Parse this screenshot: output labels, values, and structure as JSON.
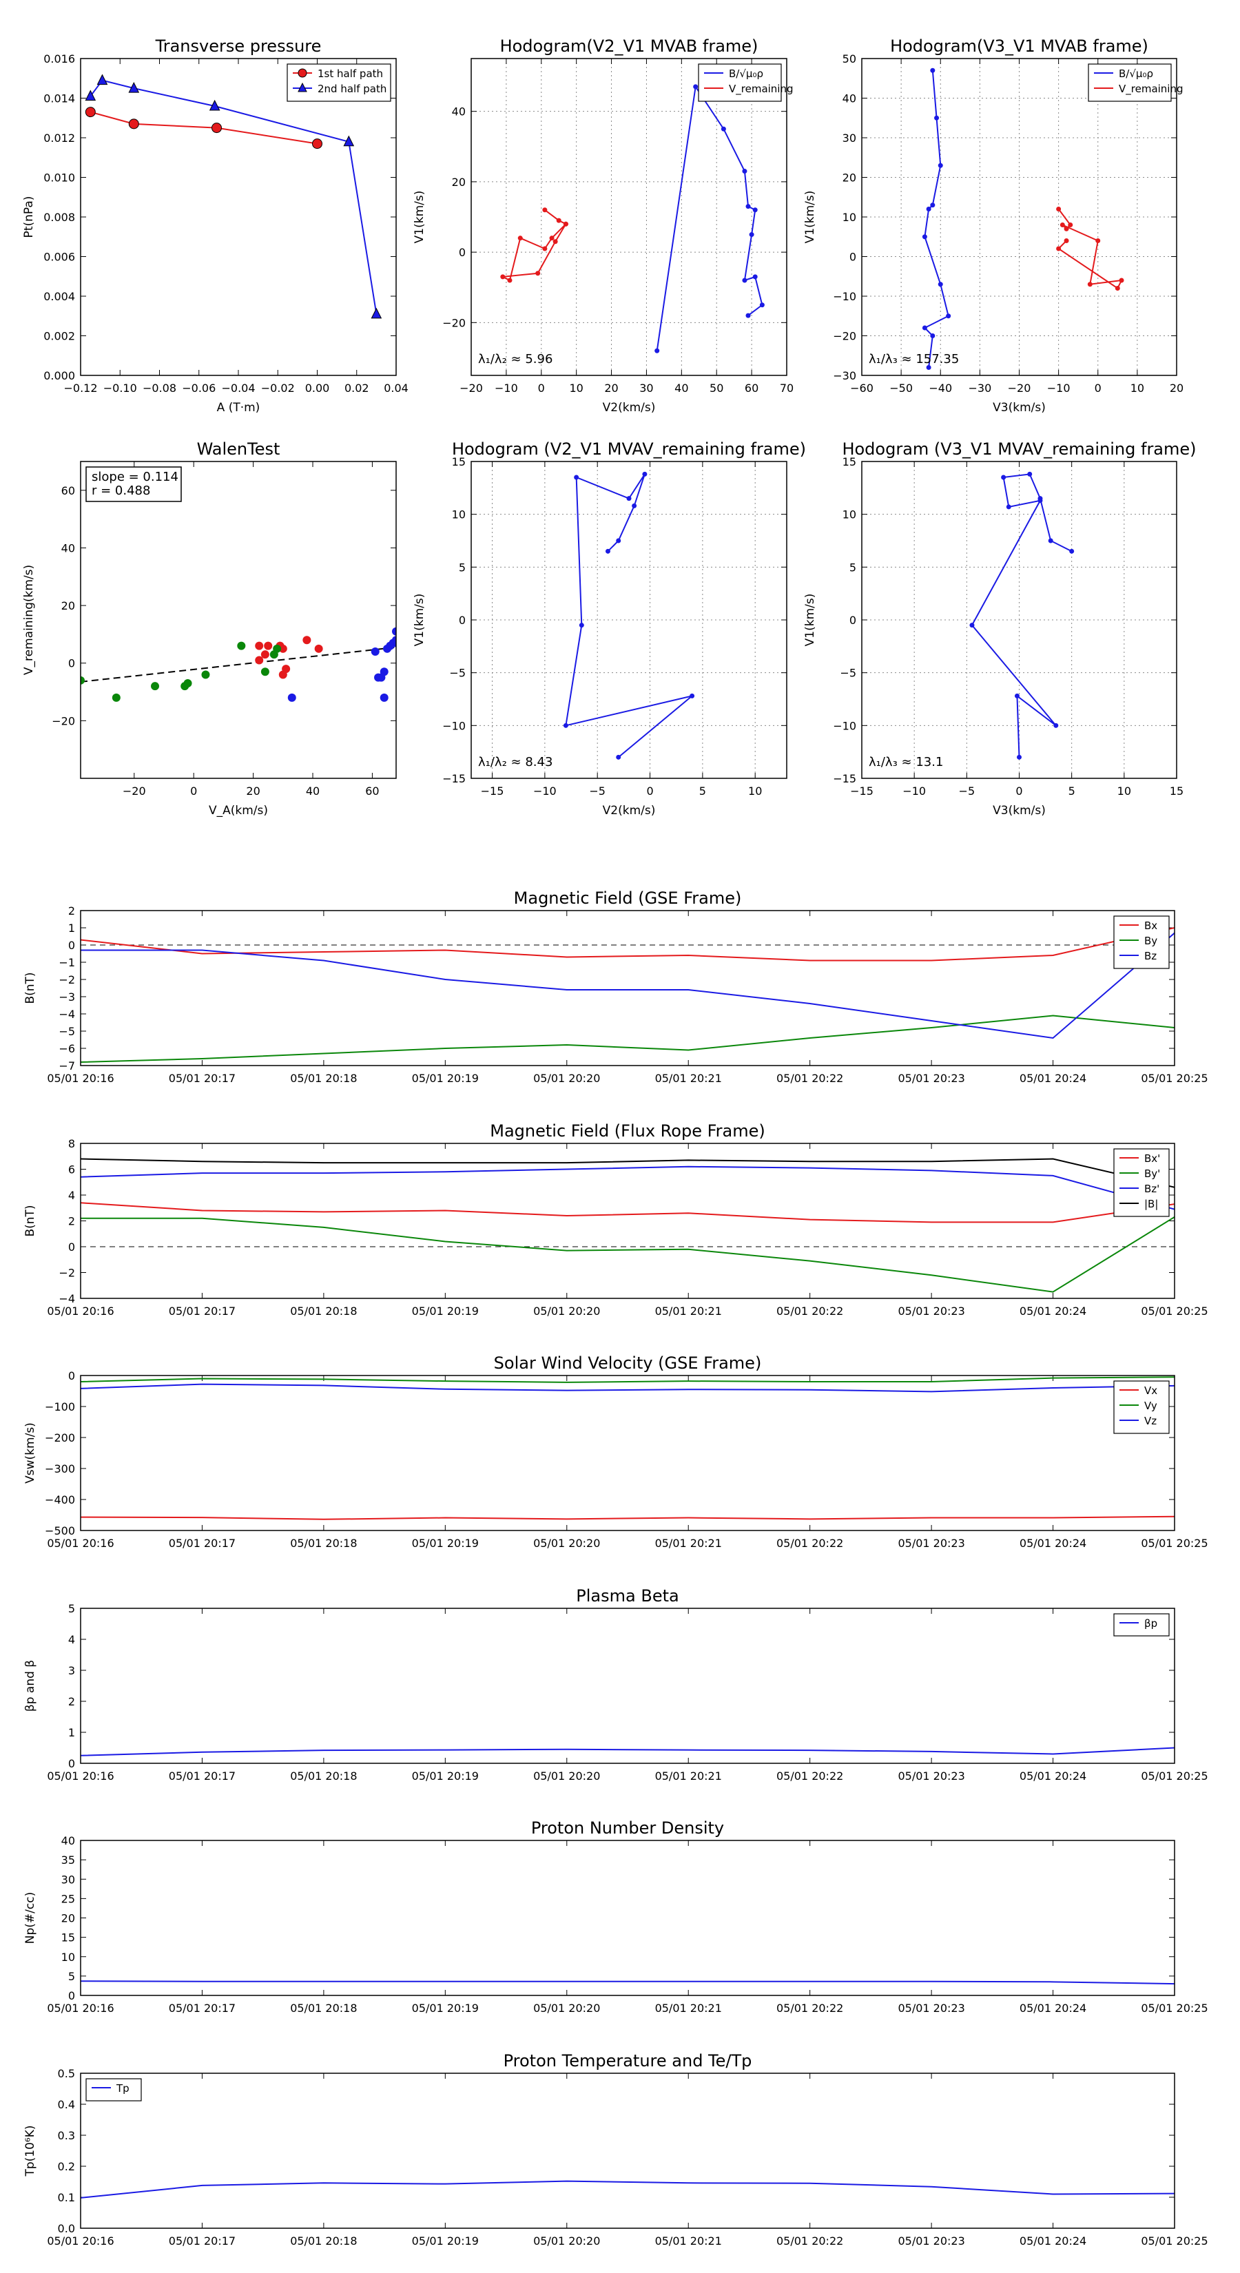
{
  "chart_data": [
    {
      "id": "pt",
      "type": "scatter",
      "title": "Transverse pressure",
      "xlabel": "A (T·m)",
      "ylabel": "Pt(nPa)",
      "xlim": [
        -0.12,
        0.04
      ],
      "ylim": [
        0.0,
        0.016
      ],
      "xticks": [
        "−0.12",
        "−0.10",
        "−0.08",
        "−0.06",
        "−0.04",
        "−0.02",
        "0.00",
        "0.02",
        "0.04"
      ],
      "yticks": [
        "0.000",
        "0.002",
        "0.004",
        "0.006",
        "0.008",
        "0.010",
        "0.012",
        "0.014",
        "0.016"
      ],
      "grid": false,
      "legend_position": "top-right",
      "series": [
        {
          "name": "1st half path",
          "color": "#e41a1c",
          "marker": "circle",
          "x": [
            -0.115,
            -0.093,
            -0.051,
            0.0
          ],
          "y": [
            0.0133,
            0.0127,
            0.0125,
            0.0117
          ]
        },
        {
          "name": "2nd half path",
          "color": "#1a1ae4",
          "marker": "triangle",
          "x": [
            -0.115,
            -0.109,
            -0.093,
            -0.052,
            0.016,
            0.03
          ],
          "y": [
            0.0141,
            0.0149,
            0.0145,
            0.0136,
            0.0118,
            0.0031
          ]
        }
      ]
    },
    {
      "id": "hodo-v2v1-mvab",
      "type": "line",
      "title": "Hodogram(V2_V1 MVAB frame)",
      "xlabel": "V2(km/s)",
      "ylabel": "V1(km/s)",
      "xlim": [
        -20,
        70
      ],
      "ylim": [
        -35,
        55
      ],
      "xticks": [
        "−20",
        "−10",
        "0",
        "10",
        "20",
        "30",
        "40",
        "50",
        "60",
        "70"
      ],
      "yticks": [
        "−20",
        "0",
        "20",
        "40"
      ],
      "grid": true,
      "legend_position": "top-right",
      "annotation": "λ₁/λ₂ ≈ 5.96",
      "series": [
        {
          "name": "B/√μ₀ρ",
          "color": "#1a1ae4",
          "x": [
            33,
            44,
            52,
            58,
            59,
            61,
            60,
            58,
            61,
            63,
            59
          ],
          "y": [
            -28,
            47,
            35,
            23,
            13,
            12,
            5,
            -8,
            -7,
            -15,
            -18
          ]
        },
        {
          "name": "V_remaining",
          "color": "#e41a1c",
          "x": [
            1,
            5,
            7,
            4,
            -1,
            -11,
            -9,
            -6,
            1,
            3,
            7
          ],
          "y": [
            12,
            9,
            8,
            3,
            -6,
            -7,
            -8,
            4,
            1,
            4,
            8
          ]
        }
      ]
    },
    {
      "id": "hodo-v3v1-mvab",
      "type": "line",
      "title": "Hodogram(V3_V1 MVAB frame)",
      "xlabel": "V3(km/s)",
      "ylabel": "V1(km/s)",
      "xlim": [
        -60,
        20
      ],
      "ylim": [
        -30,
        50
      ],
      "xticks": [
        "−60",
        "−50",
        "−40",
        "−30",
        "−20",
        "−10",
        "0",
        "10",
        "20"
      ],
      "yticks": [
        "−30",
        "−20",
        "−10",
        "0",
        "10",
        "20",
        "30",
        "40",
        "50"
      ],
      "grid": true,
      "legend_position": "top-right",
      "annotation": "λ₁/λ₃ ≈ 157.35",
      "series": [
        {
          "name": "B/√μ₀ρ",
          "color": "#1a1ae4",
          "x": [
            -42,
            -41,
            -40,
            -42,
            -43,
            -44,
            -40,
            -38,
            -44,
            -42,
            -43
          ],
          "y": [
            47,
            35,
            23,
            13,
            12,
            5,
            -7,
            -15,
            -18,
            -20,
            -28
          ]
        },
        {
          "name": "V_remaining",
          "color": "#e41a1c",
          "x": [
            -10,
            -7,
            -8,
            -9,
            0,
            -2,
            6,
            5,
            -10,
            -8
          ],
          "y": [
            12,
            8,
            7,
            8,
            4,
            -7,
            -6,
            -8,
            2,
            4
          ]
        }
      ]
    },
    {
      "id": "walen",
      "type": "scatter",
      "title": "WalenTest",
      "xlabel": "V_A(km/s)",
      "ylabel": "V_remaining(km/s)",
      "xlim": [
        -38,
        68
      ],
      "ylim": [
        -40,
        70
      ],
      "xticks": [
        "−20",
        "0",
        "20",
        "40",
        "60"
      ],
      "yticks": [
        "−20",
        "0",
        "20",
        "40",
        "60"
      ],
      "grid": false,
      "annotation_lines": [
        "slope = 0.114",
        "r = 0.488"
      ],
      "fit_line": {
        "x": [
          -38,
          68
        ],
        "y": [
          -6.5,
          5.5
        ]
      },
      "series": [
        {
          "name": "",
          "color": "#e41a1c",
          "x": [
            22,
            24,
            25,
            29,
            30,
            31,
            30,
            38,
            42,
            22
          ],
          "y": [
            6,
            3,
            6,
            6,
            5,
            -2,
            -4,
            8,
            5,
            1
          ]
        },
        {
          "name": "",
          "color": "#0a870a",
          "x": [
            -38,
            -26,
            -13,
            -3,
            -2,
            4,
            16,
            24,
            27,
            28
          ],
          "y": [
            -6,
            -12,
            -8,
            -8,
            -7,
            -4,
            6,
            -3,
            3,
            5
          ]
        },
        {
          "name": "",
          "color": "#1a1ae4",
          "x": [
            33,
            61,
            63,
            64,
            65,
            66,
            67,
            68,
            68,
            68,
            62,
            64
          ],
          "y": [
            -12,
            4,
            -5,
            -3,
            5,
            6,
            7,
            8,
            11,
            7,
            -5,
            -12
          ]
        }
      ]
    },
    {
      "id": "hodo-v2v1-mvav",
      "type": "line",
      "title": "Hodogram (V2_V1 MVAV_remaining frame)",
      "xlabel": "V2(km/s)",
      "ylabel": "V1(km/s)",
      "xlim": [
        -17,
        13
      ],
      "ylim": [
        -15,
        15
      ],
      "xticks": [
        "−15",
        "−10",
        "−5",
        "0",
        "5",
        "10"
      ],
      "yticks": [
        "−15",
        "−10",
        "−5",
        "0",
        "5",
        "10",
        "15"
      ],
      "grid": true,
      "annotation": "λ₁/λ₂ ≈ 8.43",
      "series": [
        {
          "name": "",
          "color": "#1a1ae4",
          "x": [
            -4,
            -3,
            -1.5,
            -0.5,
            -2,
            -7,
            -6.5,
            -8,
            4,
            -3
          ],
          "y": [
            6.5,
            7.5,
            10.8,
            13.8,
            11.5,
            13.5,
            -0.5,
            -10,
            -7.2,
            -13
          ]
        }
      ]
    },
    {
      "id": "hodo-v3v1-mvav",
      "type": "line",
      "title": "Hodogram (V3_V1 MVAV_remaining frame)",
      "xlabel": "V3(km/s)",
      "ylabel": "V1(km/s)",
      "xlim": [
        -15,
        15
      ],
      "ylim": [
        -15,
        15
      ],
      "xticks": [
        "−15",
        "−10",
        "−5",
        "0",
        "5",
        "10",
        "15"
      ],
      "yticks": [
        "−15",
        "−10",
        "−5",
        "0",
        "5",
        "10",
        "15"
      ],
      "grid": true,
      "annotation": "λ₁/λ₃ ≈ 13.1",
      "series": [
        {
          "name": "",
          "color": "#1a1ae4",
          "x": [
            5,
            3,
            2,
            1,
            -1.5,
            -1,
            2,
            -4.5,
            3.5,
            -0.2,
            0
          ],
          "y": [
            6.5,
            7.5,
            11.5,
            13.8,
            13.5,
            10.7,
            11.3,
            -0.5,
            -10,
            -7.2,
            -13
          ]
        }
      ]
    },
    {
      "id": "b-gse",
      "type": "line",
      "title": "Magnetic Field (GSE Frame)",
      "ylabel": "B(nT)",
      "categories": [
        "05/01 20:16",
        "05/01 20:17",
        "05/01 20:18",
        "05/01 20:19",
        "05/01 20:20",
        "05/01 20:21",
        "05/01 20:22",
        "05/01 20:23",
        "05/01 20:24",
        "05/01 20:25"
      ],
      "ylim": [
        -7,
        2
      ],
      "yticks": [
        "−7",
        "−6",
        "−5",
        "−4",
        "−3",
        "−2",
        "−1",
        "0",
        "1",
        "2"
      ],
      "zero_line": true,
      "legend_position": "top-right",
      "series": [
        {
          "name": "Bx",
          "color": "#e41a1c",
          "x": [
            0,
            1,
            2,
            3,
            4,
            5,
            6,
            7,
            8,
            9
          ],
          "y": [
            0.3,
            -0.5,
            -0.4,
            -0.3,
            -0.7,
            -0.6,
            -0.9,
            -0.9,
            -0.6,
            1.0
          ]
        },
        {
          "name": "By",
          "color": "#0a870a",
          "x": [
            0,
            1,
            2,
            3,
            4,
            5,
            6,
            7,
            8,
            9
          ],
          "y": [
            -6.8,
            -6.6,
            -6.3,
            -6.0,
            -5.8,
            -6.1,
            -5.4,
            -4.8,
            -4.1,
            -4.8
          ]
        },
        {
          "name": "Bz",
          "color": "#1a1ae4",
          "x": [
            0,
            1,
            2,
            3,
            4,
            5,
            6,
            7,
            8,
            9
          ],
          "y": [
            -0.3,
            -0.3,
            -0.9,
            -2.0,
            -2.6,
            -2.6,
            -3.4,
            -4.4,
            -5.4,
            0.7
          ]
        }
      ]
    },
    {
      "id": "b-fr",
      "type": "line",
      "title": "Magnetic Field (Flux Rope Frame)",
      "ylabel": "B(nT)",
      "categories": [
        "05/01 20:16",
        "05/01 20:17",
        "05/01 20:18",
        "05/01 20:19",
        "05/01 20:20",
        "05/01 20:21",
        "05/01 20:22",
        "05/01 20:23",
        "05/01 20:24",
        "05/01 20:25"
      ],
      "ylim": [
        -4,
        8
      ],
      "yticks": [
        "−4",
        "−2",
        "0",
        "2",
        "4",
        "6",
        "8"
      ],
      "zero_line": true,
      "legend_position": "top-right",
      "series": [
        {
          "name": "Bx'",
          "color": "#e41a1c",
          "x": [
            0,
            1,
            2,
            3,
            4,
            5,
            6,
            7,
            8,
            9
          ],
          "y": [
            3.4,
            2.8,
            2.7,
            2.8,
            2.4,
            2.6,
            2.1,
            1.9,
            1.9,
            3.3
          ]
        },
        {
          "name": "By'",
          "color": "#0a870a",
          "x": [
            0,
            1,
            2,
            3,
            4,
            5,
            6,
            7,
            8,
            9
          ],
          "y": [
            2.2,
            2.2,
            1.5,
            0.4,
            -0.3,
            -0.2,
            -1.1,
            -2.2,
            -3.5,
            2.3
          ]
        },
        {
          "name": "Bz'",
          "color": "#1a1ae4",
          "x": [
            0,
            1,
            2,
            3,
            4,
            5,
            6,
            7,
            8,
            9
          ],
          "y": [
            5.4,
            5.7,
            5.7,
            5.8,
            6.0,
            6.2,
            6.1,
            5.9,
            5.5,
            2.9
          ]
        },
        {
          "name": "|B|",
          "color": "#000000",
          "x": [
            0,
            1,
            2,
            3,
            4,
            5,
            6,
            7,
            8,
            9
          ],
          "y": [
            6.8,
            6.6,
            6.5,
            6.5,
            6.5,
            6.7,
            6.6,
            6.6,
            6.8,
            4.6
          ]
        }
      ]
    },
    {
      "id": "vsw",
      "type": "line",
      "title": "Solar Wind Velocity (GSE Frame)",
      "ylabel": "Vsw(km/s)",
      "categories": [
        "05/01 20:16",
        "05/01 20:17",
        "05/01 20:18",
        "05/01 20:19",
        "05/01 20:20",
        "05/01 20:21",
        "05/01 20:22",
        "05/01 20:23",
        "05/01 20:24",
        "05/01 20:25"
      ],
      "ylim": [
        -500,
        0
      ],
      "yticks": [
        "−500",
        "−400",
        "−300",
        "−200",
        "−100",
        "0"
      ],
      "legend_position": "top-right",
      "series": [
        {
          "name": "Vx",
          "color": "#e41a1c",
          "x": [
            0,
            1,
            2,
            3,
            4,
            5,
            6,
            7,
            8,
            9
          ],
          "y": [
            -457,
            -458,
            -464,
            -459,
            -463,
            -459,
            -463,
            -459,
            -459,
            -455
          ]
        },
        {
          "name": "Vy",
          "color": "#0a870a",
          "x": [
            0,
            1,
            2,
            3,
            4,
            5,
            6,
            7,
            8,
            9
          ],
          "y": [
            -20,
            -10,
            -12,
            -18,
            -22,
            -18,
            -20,
            -20,
            -8,
            -5
          ]
        },
        {
          "name": "Vz",
          "color": "#1a1ae4",
          "x": [
            0,
            1,
            2,
            3,
            4,
            5,
            6,
            7,
            8,
            9
          ],
          "y": [
            -42,
            -28,
            -32,
            -44,
            -48,
            -45,
            -46,
            -52,
            -40,
            -33
          ]
        }
      ]
    },
    {
      "id": "beta",
      "type": "line",
      "title": "Plasma Beta",
      "ylabel": "βp and β",
      "categories": [
        "05/01 20:16",
        "05/01 20:17",
        "05/01 20:18",
        "05/01 20:19",
        "05/01 20:20",
        "05/01 20:21",
        "05/01 20:22",
        "05/01 20:23",
        "05/01 20:24",
        "05/01 20:25"
      ],
      "ylim": [
        0,
        5
      ],
      "yticks": [
        "0",
        "1",
        "2",
        "3",
        "4",
        "5"
      ],
      "legend_position": "top-right",
      "series": [
        {
          "name": "βp",
          "color": "#1a1ae4",
          "x": [
            0,
            1,
            2,
            3,
            4,
            5,
            6,
            7,
            8,
            9
          ],
          "y": [
            0.25,
            0.36,
            0.42,
            0.43,
            0.45,
            0.43,
            0.42,
            0.38,
            0.3,
            0.5
          ]
        }
      ]
    },
    {
      "id": "np",
      "type": "line",
      "title": "Proton Number Density",
      "ylabel": "Np(#/cc)",
      "categories": [
        "05/01 20:16",
        "05/01 20:17",
        "05/01 20:18",
        "05/01 20:19",
        "05/01 20:20",
        "05/01 20:21",
        "05/01 20:22",
        "05/01 20:23",
        "05/01 20:24",
        "05/01 20:25"
      ],
      "ylim": [
        0,
        40
      ],
      "yticks": [
        "0",
        "5",
        "10",
        "15",
        "20",
        "25",
        "30",
        "35",
        "40"
      ],
      "series": [
        {
          "name": "",
          "color": "#1a1ae4",
          "x": [
            0,
            1,
            2,
            3,
            4,
            5,
            6,
            7,
            8,
            9
          ],
          "y": [
            3.7,
            3.6,
            3.6,
            3.6,
            3.6,
            3.6,
            3.6,
            3.6,
            3.5,
            3.0
          ]
        }
      ]
    },
    {
      "id": "tp",
      "type": "line",
      "title": "Proton Temperature and Te/Tp",
      "ylabel": "Tp(10⁶K)",
      "categories": [
        "05/01 20:16",
        "05/01 20:17",
        "05/01 20:18",
        "05/01 20:19",
        "05/01 20:20",
        "05/01 20:21",
        "05/01 20:22",
        "05/01 20:23",
        "05/01 20:24",
        "05/01 20:25"
      ],
      "ylim": [
        0,
        0.5
      ],
      "yticks": [
        "0.0",
        "0.1",
        "0.2",
        "0.3",
        "0.4",
        "0.5"
      ],
      "legend_position": "top-left",
      "series": [
        {
          "name": "Tp",
          "color": "#1a1ae4",
          "x": [
            0,
            1,
            2,
            3,
            4,
            5,
            6,
            7,
            8,
            9
          ],
          "y": [
            0.098,
            0.138,
            0.146,
            0.143,
            0.152,
            0.146,
            0.145,
            0.134,
            0.11,
            0.112
          ]
        }
      ]
    }
  ]
}
